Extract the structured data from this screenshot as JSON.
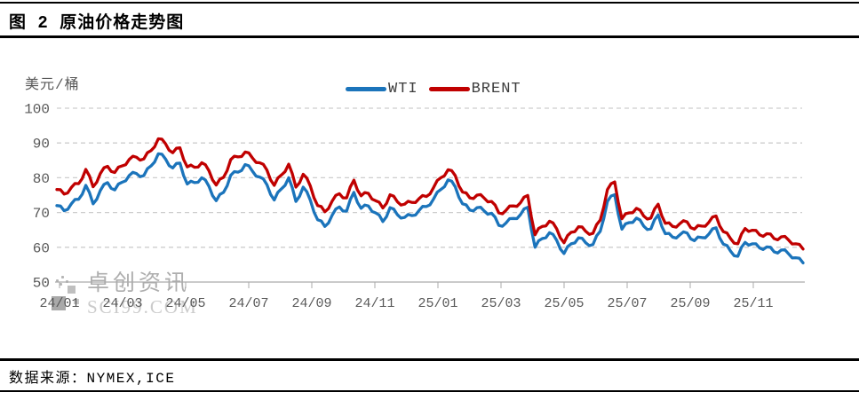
{
  "header": {
    "title": "图 2 原油价格走势图"
  },
  "footer": {
    "source_label": "数据来源：NYMEX,ICE"
  },
  "watermark": {
    "line1": "卓创资讯",
    "line2": "SCI99.COM"
  },
  "chart_data": {
    "type": "line",
    "title": "原油价格走势图",
    "unit_label": "美元/桶",
    "ylim": [
      50,
      100
    ],
    "y_ticks": [
      50,
      60,
      70,
      80,
      90,
      100
    ],
    "x_tick_labels": [
      "24/01",
      "24/03",
      "24/05",
      "24/07",
      "24/09",
      "24/11",
      "25/01",
      "25/03",
      "25/05",
      "25/07",
      "25/09",
      "25/11"
    ],
    "grid": "horizontal-dashed",
    "legend_position": "top-center",
    "sampling": "weekly",
    "series": [
      {
        "name": "WTI",
        "color": "#1b74bb",
        "values": [
          72.0,
          70.5,
          72.5,
          73.8,
          77.8,
          72.5,
          76.3,
          78.6,
          76.5,
          78.7,
          80.7,
          81.2,
          80.6,
          83.4,
          86.9,
          85.4,
          82.8,
          84.2,
          78.2,
          78.6,
          80.0,
          77.5,
          73.4,
          75.8,
          80.7,
          81.6,
          83.8,
          81.9,
          80.2,
          78.0,
          73.6,
          76.8,
          80.0,
          73.2,
          77.3,
          73.5,
          67.9,
          66.0,
          69.2,
          71.6,
          70.4,
          75.8,
          71.2,
          71.9,
          69.9,
          67.4,
          71.4,
          69.4,
          68.6,
          69.1,
          70.6,
          71.7,
          73.9,
          76.6,
          79.4,
          77.4,
          72.5,
          70.7,
          71.4,
          70.4,
          69.8,
          66.3,
          67.0,
          68.3,
          69.4,
          71.5,
          60.0,
          62.5,
          64.2,
          62.0,
          58.2,
          61.0,
          62.7,
          61.3,
          60.8,
          64.6,
          73.2,
          75.1,
          65.2,
          67.1,
          68.4,
          66.1,
          65.3,
          69.3,
          63.9,
          62.9,
          63.6,
          64.1,
          61.9,
          62.8,
          63.8,
          65.6,
          60.9,
          58.9,
          57.4,
          61.4,
          61.0,
          59.8,
          60.1,
          58.7,
          59.2,
          58.1,
          57.0,
          55.5
        ]
      },
      {
        "name": "BRENT",
        "color": "#c00000",
        "values": [
          76.6,
          75.3,
          77.2,
          78.3,
          82.4,
          77.4,
          81.2,
          83.3,
          81.5,
          83.4,
          85.3,
          85.9,
          85.4,
          87.8,
          91.2,
          89.8,
          87.2,
          88.6,
          83.1,
          83.0,
          84.3,
          82.0,
          77.9,
          80.1,
          85.2,
          86.0,
          87.4,
          85.7,
          84.3,
          82.2,
          77.8,
          80.8,
          83.9,
          77.3,
          81.0,
          77.6,
          72.0,
          70.2,
          73.3,
          75.4,
          74.2,
          79.3,
          74.8,
          75.5,
          73.4,
          71.3,
          75.1,
          73.1,
          72.4,
          72.9,
          74.0,
          74.6,
          77.2,
          80.0,
          82.3,
          80.6,
          75.9,
          74.2,
          75.0,
          74.1,
          73.2,
          69.9,
          70.6,
          71.9,
          72.8,
          74.9,
          63.6,
          66.0,
          67.5,
          65.3,
          61.3,
          64.3,
          65.9,
          64.6,
          64.0,
          67.8,
          76.6,
          78.8,
          68.2,
          69.9,
          71.2,
          69.0,
          68.4,
          72.4,
          66.9,
          66.0,
          66.8,
          67.3,
          65.2,
          66.1,
          67.2,
          69.0,
          64.5,
          62.5,
          61.0,
          65.4,
          64.9,
          63.6,
          63.9,
          62.5,
          63.0,
          62.1,
          61.0,
          59.5
        ]
      }
    ]
  }
}
